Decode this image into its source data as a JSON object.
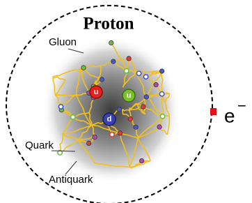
{
  "title": "Proton",
  "labels": {
    "gluon": "Gluon",
    "quark": "Quark",
    "antiquark": "Antiquark"
  },
  "valence_quarks": [
    "u",
    "u",
    "d"
  ],
  "electron": {
    "symbol": "e",
    "charge": "−"
  }
}
